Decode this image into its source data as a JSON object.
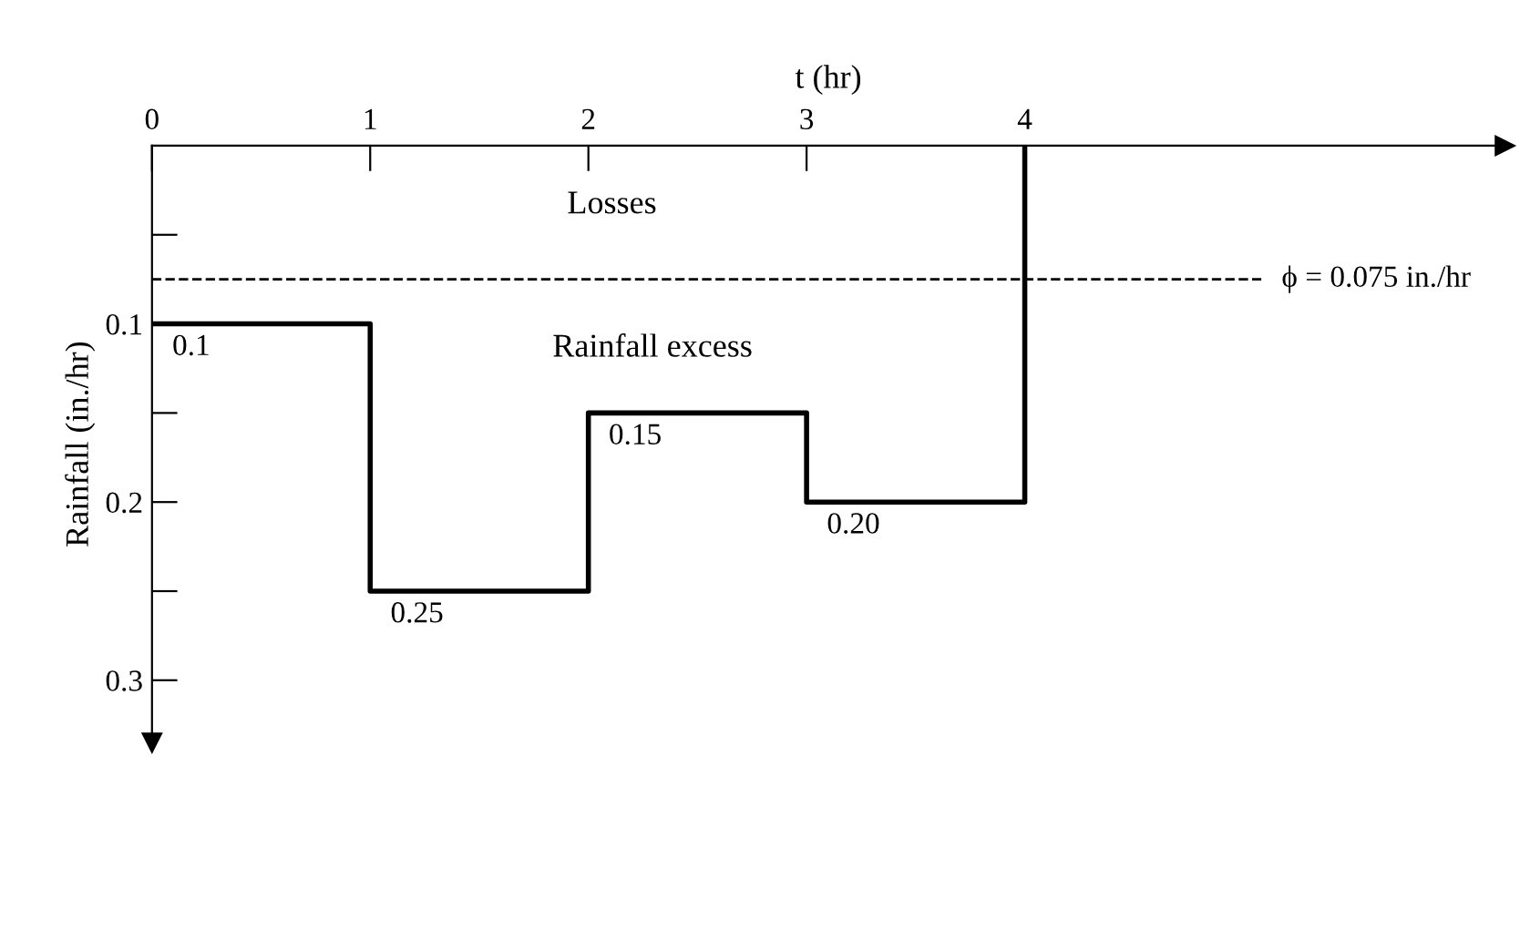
{
  "chart_data": {
    "type": "step",
    "xlabel": "t (hr)",
    "ylabel": "Rainfall (in./hr)",
    "x": [
      0,
      1,
      2,
      3,
      4
    ],
    "series": [
      {
        "color": "#000000",
        "values": [
          0.1,
          0.25,
          0.15,
          0.2,
          0
        ],
        "value_labels": [
          "0.1",
          "0.25",
          "0.15",
          "0.20",
          null
        ]
      }
    ],
    "xlim": [
      0,
      6.2
    ],
    "ylim": [
      0.335,
      0
    ],
    "xticks": [
      0,
      1,
      2,
      3,
      4
    ],
    "yticks": [
      {
        "value": 0.05,
        "label": null
      },
      0.1,
      {
        "value": 0.15,
        "label": null
      },
      0.2,
      {
        "value": 0.25,
        "label": null
      },
      0.3
    ],
    "ref_lines": [
      {
        "axis": "y",
        "value": 0.075,
        "label": "ϕ = 0.075 in./hr",
        "line_style": "dashed",
        "color": "#000000"
      }
    ],
    "annotations": [
      "Losses",
      "Rainfall excess"
    ],
    "grid": false,
    "legend": false,
    "marker": "none",
    "line_style": "solid"
  }
}
